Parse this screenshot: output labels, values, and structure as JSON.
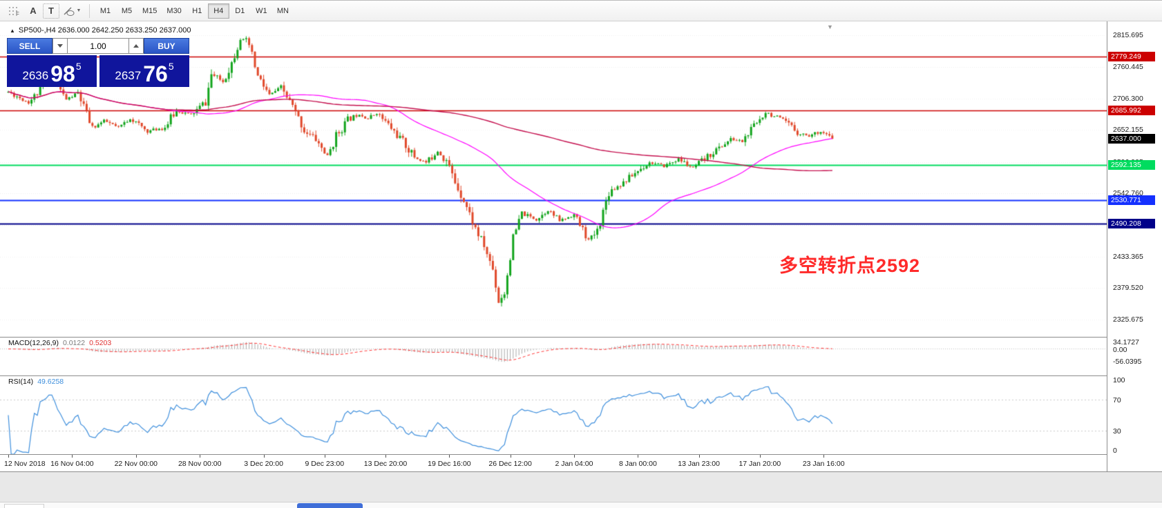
{
  "toolbar": {
    "icon_a": "A",
    "icon_t": "T",
    "timeframes": [
      {
        "label": "M1"
      },
      {
        "label": "M5"
      },
      {
        "label": "M15"
      },
      {
        "label": "M30"
      },
      {
        "label": "H1"
      },
      {
        "label": "H4",
        "active": true
      },
      {
        "label": "D1"
      },
      {
        "label": "W1"
      },
      {
        "label": "MN"
      }
    ]
  },
  "chart": {
    "title": "SP500-,H4 2636.000 2642.250 2633.250 2637.000",
    "annotation": "多空转折点2592",
    "annotation_color": "#ff2a2a"
  },
  "trade_panel": {
    "sell_label": "SELL",
    "buy_label": "BUY",
    "lot_value": "1.00",
    "sell_price": {
      "base": "2636",
      "big": "98",
      "sup": "5"
    },
    "buy_price": {
      "base": "2637",
      "big": "76",
      "sup": "5"
    }
  },
  "indicators": {
    "macd": {
      "name": "MACD(12,26,9)",
      "value1": "0.0122",
      "value2": "0.5203",
      "axis": [
        {
          "label": "34.1727",
          "value": 34.1727
        },
        {
          "label": "0.00",
          "value": 0
        },
        {
          "label": "-56.0395",
          "value": -56.0395
        }
      ]
    },
    "rsi": {
      "name": "RSI(14)",
      "value": "49.6258",
      "axis": [
        {
          "label": "100",
          "value": 100
        },
        {
          "label": "70",
          "value": 70
        },
        {
          "label": "30",
          "value": 30
        },
        {
          "label": "0",
          "value": 0
        }
      ],
      "levels": [
        70,
        30
      ]
    }
  },
  "colors": {
    "candle_up": "#12a41c",
    "candle_down": "#e0482a",
    "ma_fast": "#ff00ff",
    "ma_slow": "#c4104e",
    "macd_hist": "#a8a8a8",
    "macd_signal": "#ff3232",
    "rsi_line": "#3d8edc"
  },
  "chart_data": {
    "type": "candlestick",
    "symbol": "SP500-",
    "timeframe": "H4",
    "last_ohlc": {
      "open": 2636.0,
      "high": 2642.25,
      "low": 2633.25,
      "close": 2637.0
    },
    "bars": 285,
    "seed": 11,
    "price_anchors": [
      [
        0,
        2718
      ],
      [
        7,
        2700
      ],
      [
        12,
        2726
      ],
      [
        15,
        2742
      ],
      [
        20,
        2705
      ],
      [
        24,
        2716
      ],
      [
        29,
        2655
      ],
      [
        33,
        2668
      ],
      [
        38,
        2656
      ],
      [
        42,
        2672
      ],
      [
        48,
        2650
      ],
      [
        54,
        2657
      ],
      [
        58,
        2686
      ],
      [
        63,
        2678
      ],
      [
        68,
        2700
      ],
      [
        70,
        2748
      ],
      [
        74,
        2736
      ],
      [
        77,
        2768
      ],
      [
        80,
        2812
      ],
      [
        83,
        2798
      ],
      [
        86,
        2744
      ],
      [
        90,
        2712
      ],
      [
        94,
        2726
      ],
      [
        98,
        2692
      ],
      [
        102,
        2652
      ],
      [
        106,
        2636
      ],
      [
        110,
        2606
      ],
      [
        113,
        2642
      ],
      [
        117,
        2670
      ],
      [
        121,
        2680
      ],
      [
        124,
        2672
      ],
      [
        127,
        2682
      ],
      [
        131,
        2661
      ],
      [
        136,
        2632
      ],
      [
        140,
        2606
      ],
      [
        144,
        2596
      ],
      [
        148,
        2616
      ],
      [
        151,
        2600
      ],
      [
        154,
        2562
      ],
      [
        157,
        2532
      ],
      [
        161,
        2482
      ],
      [
        164,
        2452
      ],
      [
        167,
        2412
      ],
      [
        169,
        2357
      ],
      [
        171,
        2372
      ],
      [
        174,
        2465
      ],
      [
        177,
        2508
      ],
      [
        182,
        2498
      ],
      [
        186,
        2514
      ],
      [
        190,
        2496
      ],
      [
        195,
        2506
      ],
      [
        200,
        2462
      ],
      [
        203,
        2478
      ],
      [
        207,
        2546
      ],
      [
        212,
        2562
      ],
      [
        217,
        2582
      ],
      [
        221,
        2596
      ],
      [
        226,
        2590
      ],
      [
        231,
        2602
      ],
      [
        236,
        2586
      ],
      [
        239,
        2598
      ],
      [
        244,
        2618
      ],
      [
        249,
        2636
      ],
      [
        253,
        2633
      ],
      [
        258,
        2664
      ],
      [
        261,
        2684
      ],
      [
        264,
        2676
      ],
      [
        269,
        2662
      ],
      [
        272,
        2648
      ],
      [
        276,
        2642
      ],
      [
        280,
        2650
      ],
      [
        284,
        2637
      ]
    ],
    "hlines": [
      {
        "value": 2779.249,
        "label": "2779.249",
        "color": "#cc0000",
        "width": 1.4
      },
      {
        "value": 2685.992,
        "label": "2685.992",
        "color": "#cc0000",
        "width": 1.4
      },
      {
        "value": 2592.135,
        "label": "2592.135",
        "color": "#00dc5f",
        "width": 2
      },
      {
        "value": 2530.771,
        "label": "2530.771",
        "color": "#1430ff",
        "width": 2
      },
      {
        "value": 2490.208,
        "label": "2490.208",
        "color": "#000089",
        "width": 2
      }
    ],
    "current_price": {
      "label": "2637.000",
      "value": 2637.0,
      "badge_bg": "#000000"
    },
    "y_ticks": [
      {
        "label": "2815.695",
        "value": 2815.695
      },
      {
        "label": "2760.445",
        "value": 2760.445
      },
      {
        "label": "2706.300",
        "value": 2706.3
      },
      {
        "label": "2652.155",
        "value": 2652.155
      },
      {
        "label": "2596.905",
        "value": 2596.905
      },
      {
        "label": "2542.760",
        "value": 2542.76
      },
      {
        "label": "2488.615",
        "value": 2488.615
      },
      {
        "label": "2433.365",
        "value": 2433.365
      },
      {
        "label": "2379.520",
        "value": 2379.52
      },
      {
        "label": "2325.675",
        "value": 2325.675
      }
    ],
    "x_ticks": [
      {
        "bar": 0,
        "label": "12 Nov 2018"
      },
      {
        "bar": 22,
        "label": "16 Nov 04:00"
      },
      {
        "bar": 44,
        "label": "22 Nov 00:00"
      },
      {
        "bar": 66,
        "label": "28 Nov 00:00"
      },
      {
        "bar": 88,
        "label": "3 Dec 20:00"
      },
      {
        "bar": 109,
        "label": "9 Dec 23:00"
      },
      {
        "bar": 130,
        "label": "13 Dec 20:00"
      },
      {
        "bar": 152,
        "label": "19 Dec 16:00"
      },
      {
        "bar": 173,
        "label": "26 Dec 12:00"
      },
      {
        "bar": 195,
        "label": "2 Jan 04:00"
      },
      {
        "bar": 217,
        "label": "8 Jan 00:00"
      },
      {
        "bar": 238,
        "label": "13 Jan 23:00"
      },
      {
        "bar": 259,
        "label": "17 Jan 20:00"
      },
      {
        "bar": 281,
        "label": "23 Jan 16:00"
      }
    ]
  }
}
